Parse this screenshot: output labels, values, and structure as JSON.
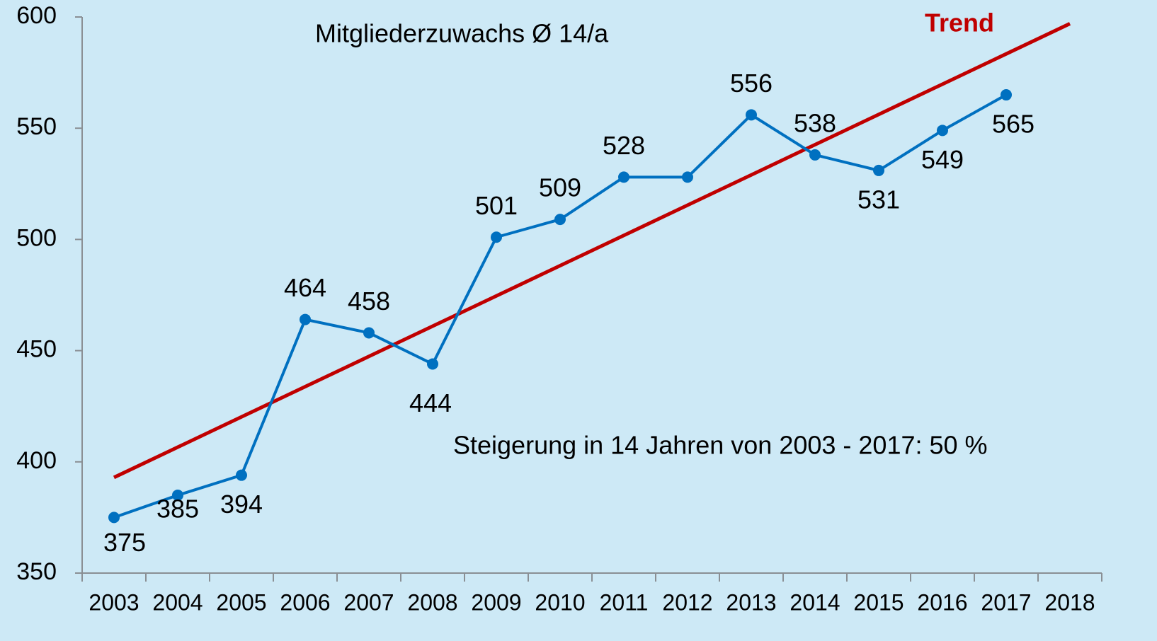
{
  "chart_data": {
    "type": "line",
    "annotations": [
      "Mitgliederzuwachs Ø 14/a",
      "Steigerung in 14 Jahren von 2003 - 2017: 50 %"
    ],
    "categories": [
      "2003",
      "2004",
      "2005",
      "2006",
      "2007",
      "2008",
      "2009",
      "2010",
      "2011",
      "2012",
      "2013",
      "2014",
      "2015",
      "2016",
      "2017",
      "2018"
    ],
    "series": [
      {
        "color": "#0070c0",
        "values": [
          375,
          385,
          394,
          464,
          458,
          444,
          501,
          509,
          528,
          528,
          556,
          538,
          531,
          549,
          565,
          null
        ],
        "value_labels": [
          "375",
          "385",
          "394",
          "464",
          "458",
          "444",
          "501",
          "509",
          "528",
          null,
          "556",
          "538",
          "531",
          "549",
          "565",
          null
        ]
      },
      {
        "name": "Trend",
        "color": "#c00000",
        "values": [
          393,
          406.6,
          420.2,
          433.8,
          447.4,
          461,
          474.6,
          488.2,
          501.8,
          515.4,
          529,
          542.6,
          556.2,
          569.8,
          583.4,
          597
        ]
      }
    ],
    "ylim": [
      350,
      600
    ],
    "yticks": [
      350,
      400,
      450,
      500,
      550,
      600
    ],
    "grid": false
  }
}
